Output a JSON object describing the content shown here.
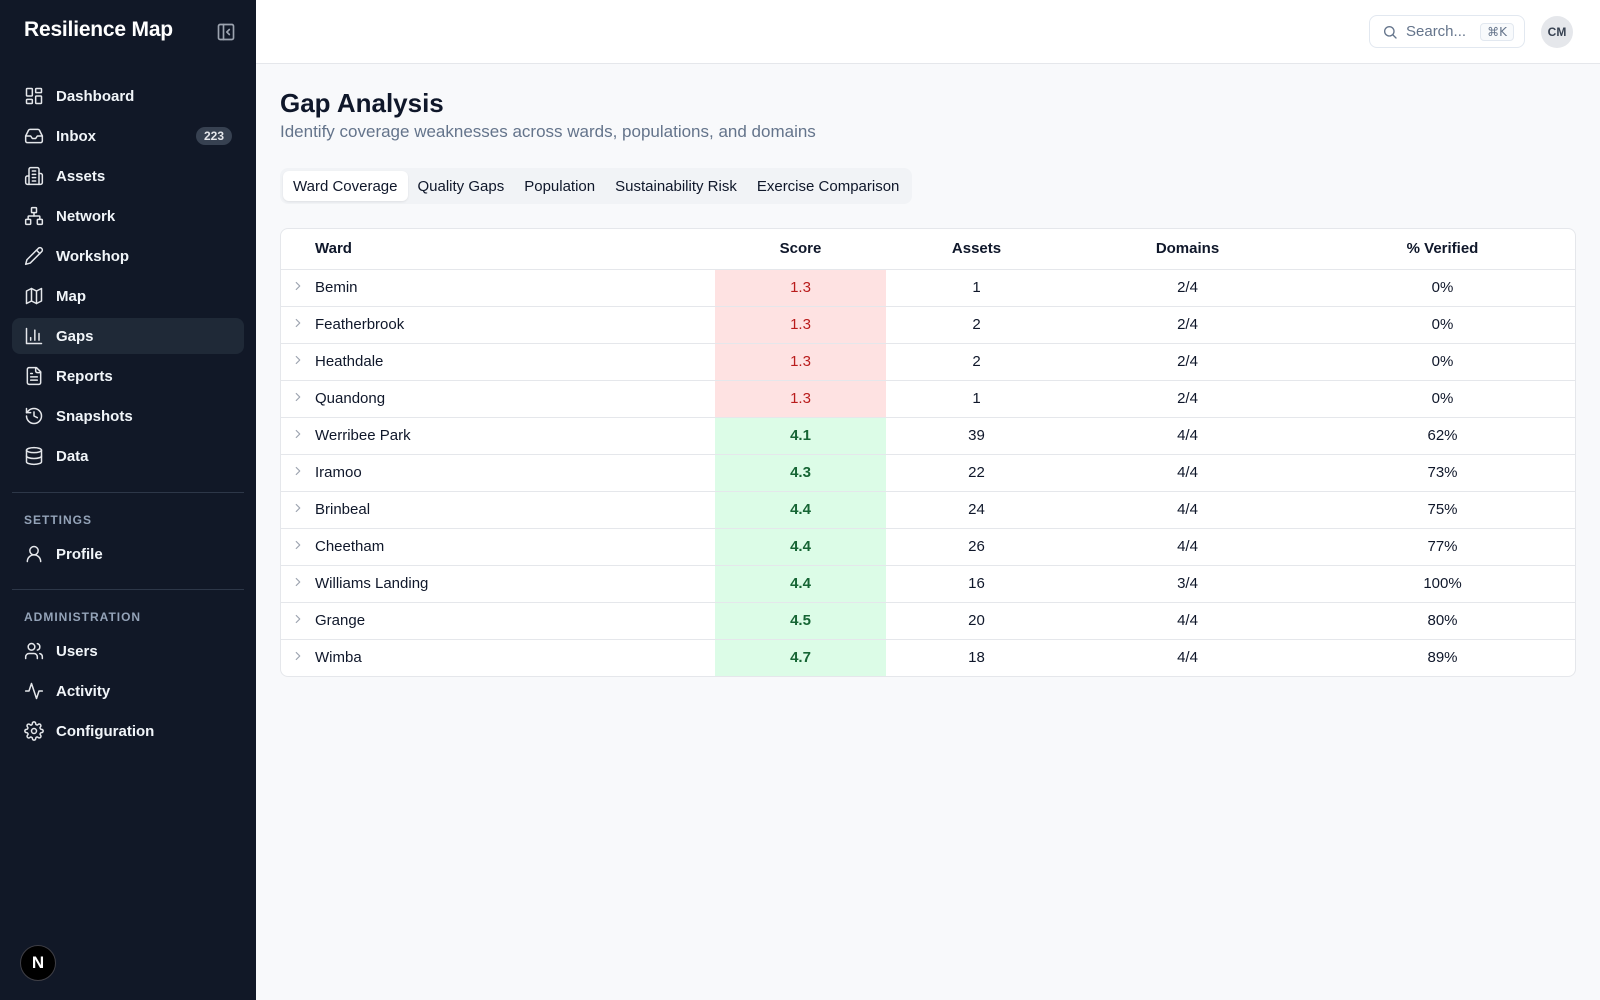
{
  "app": {
    "title": "Resilience Map"
  },
  "sidebar": {
    "items": [
      {
        "label": "Dashboard",
        "icon": "dashboard-icon"
      },
      {
        "label": "Inbox",
        "icon": "inbox-icon",
        "badge": "223"
      },
      {
        "label": "Assets",
        "icon": "building-icon"
      },
      {
        "label": "Network",
        "icon": "network-icon"
      },
      {
        "label": "Workshop",
        "icon": "pencil-icon"
      },
      {
        "label": "Map",
        "icon": "map-icon"
      },
      {
        "label": "Gaps",
        "icon": "bar-chart-icon",
        "active": true
      },
      {
        "label": "Reports",
        "icon": "file-text-icon"
      },
      {
        "label": "Snapshots",
        "icon": "history-icon"
      },
      {
        "label": "Data",
        "icon": "database-icon"
      }
    ],
    "settings_label": "SETTINGS",
    "settings_items": [
      {
        "label": "Profile",
        "icon": "user-icon"
      }
    ],
    "admin_label": "ADMINISTRATION",
    "admin_items": [
      {
        "label": "Users",
        "icon": "users-icon"
      },
      {
        "label": "Activity",
        "icon": "activity-icon"
      },
      {
        "label": "Configuration",
        "icon": "gear-icon"
      }
    ],
    "footer_logo": "N"
  },
  "header": {
    "search_placeholder": "Search...",
    "search_shortcut": "⌘K",
    "avatar_initials": "CM"
  },
  "main": {
    "title": "Gap Analysis",
    "subtitle": "Identify coverage weaknesses across wards, populations, and domains",
    "tabs": [
      {
        "label": "Ward Coverage",
        "active": true
      },
      {
        "label": "Quality Gaps"
      },
      {
        "label": "Population"
      },
      {
        "label": "Sustainability Risk"
      },
      {
        "label": "Exercise Comparison"
      }
    ],
    "table": {
      "columns": [
        "Ward",
        "Score",
        "Assets",
        "Domains",
        "% Verified"
      ],
      "rows": [
        {
          "ward": "Bemin",
          "score": "1.3",
          "level": "low",
          "assets": "1",
          "domains": "2/4",
          "verified": "0%"
        },
        {
          "ward": "Featherbrook",
          "score": "1.3",
          "level": "low",
          "assets": "2",
          "domains": "2/4",
          "verified": "0%"
        },
        {
          "ward": "Heathdale",
          "score": "1.3",
          "level": "low",
          "assets": "2",
          "domains": "2/4",
          "verified": "0%"
        },
        {
          "ward": "Quandong",
          "score": "1.3",
          "level": "low",
          "assets": "1",
          "domains": "2/4",
          "verified": "0%"
        },
        {
          "ward": "Werribee Park",
          "score": "4.1",
          "level": "high",
          "assets": "39",
          "domains": "4/4",
          "verified": "62%"
        },
        {
          "ward": "Iramoo",
          "score": "4.3",
          "level": "high",
          "assets": "22",
          "domains": "4/4",
          "verified": "73%"
        },
        {
          "ward": "Brinbeal",
          "score": "4.4",
          "level": "high",
          "assets": "24",
          "domains": "4/4",
          "verified": "75%"
        },
        {
          "ward": "Cheetham",
          "score": "4.4",
          "level": "high",
          "assets": "26",
          "domains": "4/4",
          "verified": "77%"
        },
        {
          "ward": "Williams Landing",
          "score": "4.4",
          "level": "high",
          "assets": "16",
          "domains": "3/4",
          "verified": "100%"
        },
        {
          "ward": "Grange",
          "score": "4.5",
          "level": "high",
          "assets": "20",
          "domains": "4/4",
          "verified": "80%"
        },
        {
          "ward": "Wimba",
          "score": "4.7",
          "level": "high",
          "assets": "18",
          "domains": "4/4",
          "verified": "89%"
        }
      ]
    }
  },
  "colors": {
    "sidebar_bg": "#111827",
    "score_low_bg": "#fee2e2",
    "score_low_text": "#b91c1c",
    "score_high_bg": "#dcfce7",
    "score_high_text": "#166534"
  }
}
